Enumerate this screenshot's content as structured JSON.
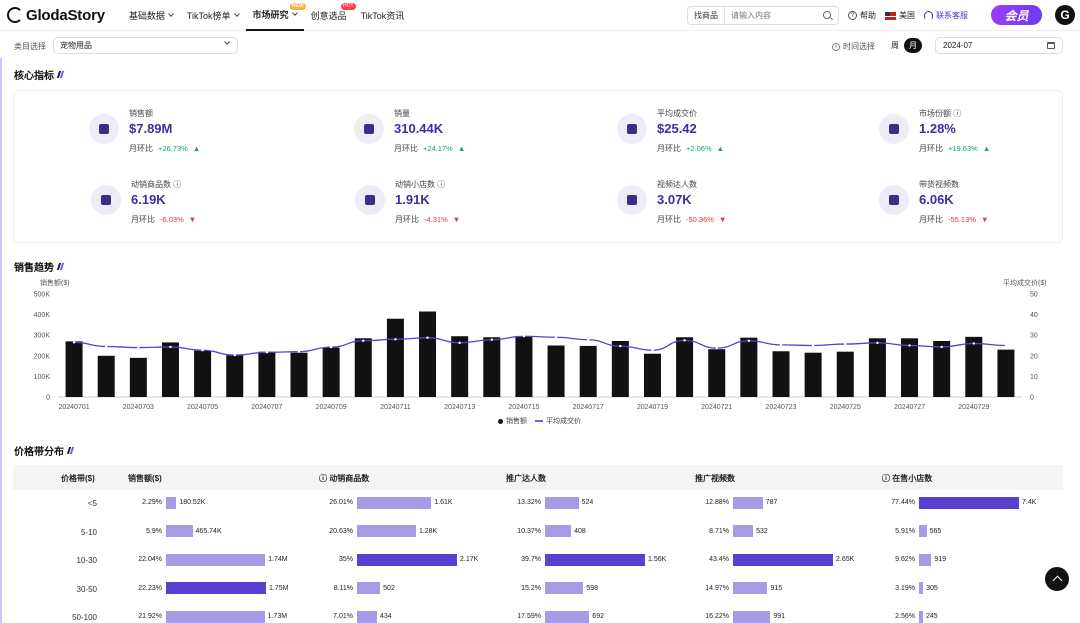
{
  "nav": {
    "logo": "GlodaStory",
    "menu": [
      {
        "label": "基础数据",
        "chevron": true,
        "badge": ""
      },
      {
        "label": "TikTok榜单",
        "chevron": true,
        "badge": ""
      },
      {
        "label": "市场研究",
        "chevron": true,
        "badge": "NEW",
        "active": true
      },
      {
        "label": "创意选品",
        "chevron": false,
        "badge": "HOT"
      },
      {
        "label": "TikTok资讯",
        "chevron": false,
        "badge": ""
      }
    ],
    "search_type": "找商品",
    "search_placeholder": "请输入内容",
    "help": "帮助",
    "region": "美国",
    "service": "联系客服",
    "vip": "会员",
    "avatar": "G"
  },
  "filters": {
    "category_label": "类目选择",
    "category_value": "宠物用品",
    "time_label": "时间选择",
    "week": "周",
    "month": "月",
    "date": "2024-07"
  },
  "sections": {
    "core": "核心指标",
    "trend": "销售趋势",
    "price": "价格带分布"
  },
  "metrics": [
    {
      "label": "销售额",
      "value": "$7.89M",
      "mom_label": "月环比",
      "change": "+26.73%",
      "dir": "up",
      "info": false
    },
    {
      "label": "销量",
      "value": "310.44K",
      "mom_label": "月环比",
      "change": "+24.17%",
      "dir": "up",
      "info": false
    },
    {
      "label": "平均成交价",
      "value": "$25.42",
      "mom_label": "月环比",
      "change": "+2.06%",
      "dir": "up",
      "info": false
    },
    {
      "label": "市场份额",
      "value": "1.28%",
      "mom_label": "月环比",
      "change": "+19.63%",
      "dir": "up",
      "info": true
    },
    {
      "label": "动销商品数",
      "value": "6.19K",
      "mom_label": "月环比",
      "change": "-6.03%",
      "dir": "down",
      "info": true
    },
    {
      "label": "动销小店数",
      "value": "1.91K",
      "mom_label": "月环比",
      "change": "-4.31%",
      "dir": "down",
      "info": true
    },
    {
      "label": "视频达人数",
      "value": "3.07K",
      "mom_label": "月环比",
      "change": "-50.36%",
      "dir": "down",
      "info": false
    },
    {
      "label": "带货视频数",
      "value": "6.06K",
      "mom_label": "月环比",
      "change": "-55.13%",
      "dir": "down",
      "info": false
    }
  ],
  "chart_data": {
    "type": "bar",
    "left_axis_label": "销售额($)",
    "right_axis_label": "平均成交价($)",
    "left_ticks": [
      "500K",
      "400K",
      "300K",
      "200K",
      "100K",
      "0"
    ],
    "right_ticks": [
      "50",
      "40",
      "30",
      "20",
      "10",
      "0"
    ],
    "ylim": [
      0,
      500000
    ],
    "y2lim": [
      0,
      50
    ],
    "categories": [
      "20240701",
      "20240702",
      "20240703",
      "20240704",
      "20240705",
      "20240706",
      "20240707",
      "20240708",
      "20240709",
      "20240710",
      "20240711",
      "20240712",
      "20240713",
      "20240714",
      "20240715",
      "20240716",
      "20240717",
      "20240718",
      "20240719",
      "20240720",
      "20240721",
      "20240722",
      "20240723",
      "20240724",
      "20240725",
      "20240726",
      "20240727",
      "20240728",
      "20240729",
      "20240730"
    ],
    "x_tick_labels": [
      "20240701",
      "20240703",
      "20240705",
      "20240707",
      "20240709",
      "20240711",
      "20240713",
      "20240715",
      "20240717",
      "20240719",
      "20240721",
      "20240723",
      "20240725",
      "20240727",
      "20240729"
    ],
    "series": [
      {
        "name": "销售额",
        "type": "bar",
        "values": [
          270000,
          200000,
          190000,
          265000,
          225000,
          205000,
          220000,
          215000,
          240000,
          285000,
          380000,
          415000,
          295000,
          290000,
          295000,
          250000,
          248000,
          272000,
          210000,
          290000,
          232000,
          288000,
          222000,
          215000,
          220000,
          285000,
          285000,
          272000,
          292000,
          230000
        ]
      },
      {
        "name": "平均成交价",
        "type": "line",
        "values": [
          26.5,
          24.5,
          24,
          24.3,
          22.7,
          20.3,
          21.7,
          22,
          24.2,
          27.3,
          28,
          28.8,
          26.3,
          27.8,
          29.5,
          29,
          27.8,
          24.7,
          22.7,
          27.5,
          23.7,
          27.3,
          25.3,
          25,
          25.7,
          26.3,
          25,
          24.3,
          26,
          25
        ]
      }
    ],
    "legend": [
      "销售额",
      "平均成交价"
    ],
    "legend_position": "bottom-center",
    "grid": false
  },
  "price_table": {
    "headers": [
      "价格带($)",
      "销售额($)",
      "动销商品数",
      "推广达人数",
      "推广视频数",
      "在售小店数"
    ],
    "rows": [
      {
        "band": "<5",
        "cells": [
          [
            "2.29%",
            "180.52K"
          ],
          [
            "26.01%",
            "1.61K"
          ],
          [
            "13.32%",
            "524"
          ],
          [
            "12.88%",
            "787"
          ],
          [
            "77.44%",
            "7.4K"
          ]
        ]
      },
      {
        "band": "5-10",
        "cells": [
          [
            "5.9%",
            "465.74K"
          ],
          [
            "20.63%",
            "1.28K"
          ],
          [
            "10.37%",
            "408"
          ],
          [
            "8.71%",
            "532"
          ],
          [
            "5.91%",
            "565"
          ]
        ]
      },
      {
        "band": "10-30",
        "cells": [
          [
            "22.04%",
            "1.74M"
          ],
          [
            "35%",
            "2.17K"
          ],
          [
            "39.7%",
            "1.56K"
          ],
          [
            "43.4%",
            "2.65K"
          ],
          [
            "9.62%",
            "919"
          ]
        ]
      },
      {
        "band": "30-50",
        "cells": [
          [
            "22.23%",
            "1.75M"
          ],
          [
            "8.11%",
            "502"
          ],
          [
            "15.2%",
            "598"
          ],
          [
            "14.97%",
            "915"
          ],
          [
            "3.19%",
            "305"
          ]
        ]
      },
      {
        "band": "50-100",
        "cells": [
          [
            "21.92%",
            "1.73M"
          ],
          [
            "7.01%",
            "434"
          ],
          [
            "17.59%",
            "692"
          ],
          [
            "16.22%",
            "991"
          ],
          [
            "2.56%",
            "245"
          ]
        ]
      }
    ]
  },
  "colors": {
    "accent": "#5a3fd0",
    "bar_light": "#a99ae6",
    "up": "#1aa36a",
    "down": "#e03434"
  }
}
